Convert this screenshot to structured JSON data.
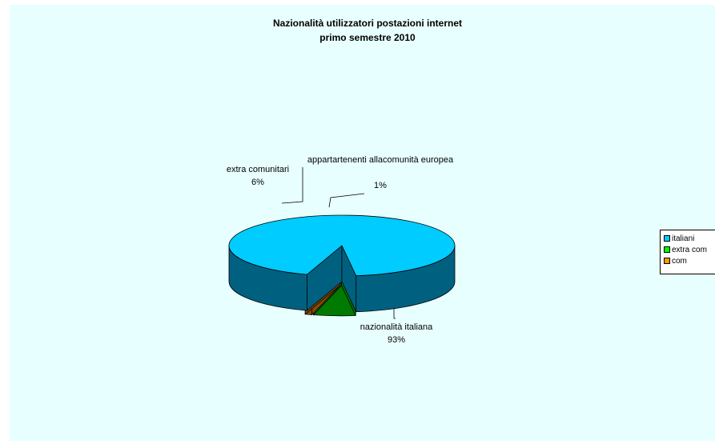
{
  "chart_data": {
    "type": "pie",
    "title": "Nazionalità utilizzatori postazioni internet",
    "subtitle": "primo semestre 2010",
    "slices": [
      {
        "label": "nazionalità italiana",
        "value": 93,
        "value_label": "93%",
        "color": "#00ccff",
        "side_color": "#006080"
      },
      {
        "label": "extra comunitari",
        "value": 6,
        "value_label": "6%",
        "color": "#00ff00",
        "side_color": "#007a00"
      },
      {
        "label": "appartartenenti allacomunità europea",
        "value": 1,
        "value_label": "1%",
        "color": "#ff9900",
        "side_color": "#8a4a00"
      }
    ],
    "legend": {
      "placement": "right",
      "items": [
        {
          "label": "italiani",
          "color": "#00ccff"
        },
        {
          "label": "extra com",
          "color": "#00ff00"
        },
        {
          "label": "com",
          "color": "#ff9900"
        }
      ]
    }
  },
  "colors": {
    "background": "#e8ffff",
    "legend_background": "#ffffff"
  }
}
